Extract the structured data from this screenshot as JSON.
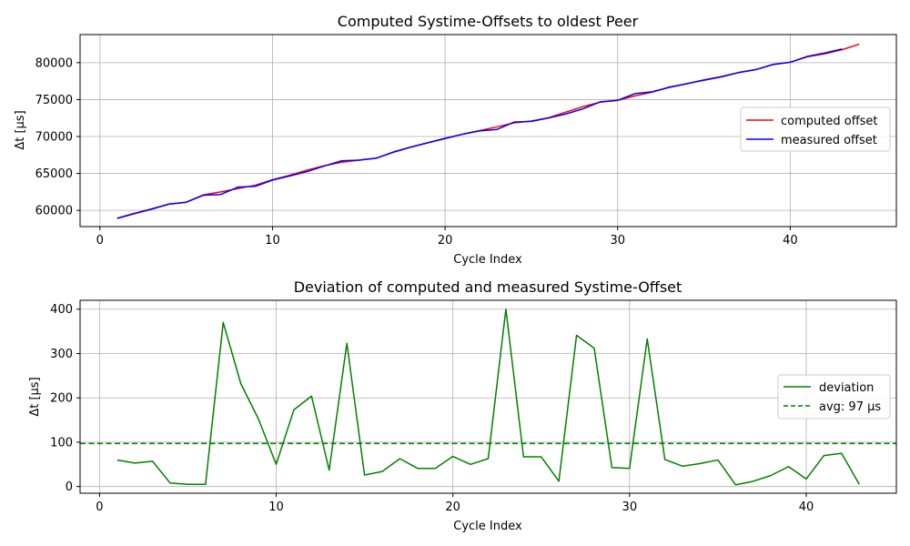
{
  "chart_data": [
    {
      "type": "line",
      "title": "Computed Systime-Offsets to oldest Peer",
      "xlabel": "Cycle Index",
      "ylabel": "Δt [µs]",
      "xlim": [
        -1.15,
        46.15
      ],
      "ylim": [
        57800,
        83800
      ],
      "xticks": [
        0,
        10,
        20,
        30,
        40
      ],
      "yticks": [
        60000,
        65000,
        70000,
        75000,
        80000
      ],
      "grid": true,
      "legend": "center-right",
      "series": [
        {
          "name": "computed offset",
          "color": "#ff0000",
          "x": [
            1,
            2,
            3,
            4,
            5,
            6,
            7,
            8,
            9,
            10,
            11,
            12,
            13,
            14,
            15,
            16,
            17,
            18,
            19,
            20,
            21,
            22,
            23,
            24,
            25,
            26,
            27,
            28,
            29,
            30,
            31,
            32,
            33,
            34,
            35,
            36,
            37,
            38,
            39,
            40,
            41,
            42,
            43,
            44
          ],
          "values": [
            58950,
            59600,
            60200,
            60850,
            61100,
            62100,
            62500,
            62950,
            63400,
            64150,
            64750,
            65450,
            66050,
            66500,
            66800,
            67050,
            67850,
            68550,
            69150,
            69700,
            70300,
            70800,
            71300,
            71850,
            72100,
            72550,
            73300,
            74050,
            74650,
            74900,
            75500,
            76000,
            76700,
            77150,
            77600,
            78050,
            78650,
            79050,
            79750,
            80050,
            80800,
            81200,
            81750,
            82500
          ]
        },
        {
          "name": "measured offset",
          "color": "#0000ff",
          "x": [
            1,
            2,
            3,
            4,
            5,
            6,
            7,
            8,
            9,
            10,
            11,
            12,
            13,
            14,
            15,
            16,
            17,
            18,
            19,
            20,
            21,
            22,
            23,
            24,
            25,
            26,
            27,
            28,
            29,
            30,
            31,
            32,
            33,
            34,
            35,
            36,
            37,
            38,
            39,
            40,
            41,
            42,
            43
          ],
          "values": [
            58900,
            59550,
            60150,
            60850,
            61100,
            62050,
            62150,
            63150,
            63250,
            64100,
            64650,
            65250,
            66000,
            66700,
            66800,
            67050,
            67900,
            68550,
            69150,
            69750,
            70300,
            70750,
            70950,
            71950,
            72050,
            72500,
            73050,
            73750,
            74700,
            74900,
            75800,
            76050,
            76650,
            77150,
            77650,
            78100,
            78650,
            79050,
            79750,
            80050,
            80850,
            81300,
            81850
          ]
        }
      ]
    },
    {
      "type": "line",
      "title": "Deviation of computed and measured Systime-Offset",
      "xlabel": "Cycle Index",
      "ylabel": "Δt [µs]",
      "xlim": [
        -1.1,
        45.1
      ],
      "ylim": [
        -15,
        420
      ],
      "xticks": [
        0,
        10,
        20,
        30,
        40
      ],
      "yticks": [
        0,
        100,
        200,
        300,
        400
      ],
      "grid": true,
      "legend": "center-right",
      "series": [
        {
          "name": "deviation",
          "color": "#008000",
          "style": "solid",
          "x": [
            1,
            2,
            3,
            4,
            5,
            6,
            7,
            8,
            9,
            10,
            11,
            12,
            13,
            14,
            15,
            16,
            17,
            18,
            19,
            20,
            21,
            22,
            23,
            24,
            25,
            26,
            27,
            28,
            29,
            30,
            31,
            32,
            33,
            34,
            35,
            36,
            37,
            38,
            39,
            40,
            41,
            42,
            43
          ],
          "values": [
            60,
            53,
            57,
            8,
            5,
            5,
            370,
            232,
            152,
            50,
            173,
            204,
            37,
            323,
            26,
            34,
            63,
            41,
            41,
            68,
            50,
            63,
            400,
            67,
            67,
            12,
            341,
            312,
            43,
            41,
            333,
            61,
            46,
            52,
            60,
            4,
            12,
            25,
            45,
            17,
            70,
            75,
            5
          ]
        },
        {
          "name": "avg: 97 µs",
          "color": "#008000",
          "style": "dashed",
          "value": 97
        }
      ]
    }
  ]
}
